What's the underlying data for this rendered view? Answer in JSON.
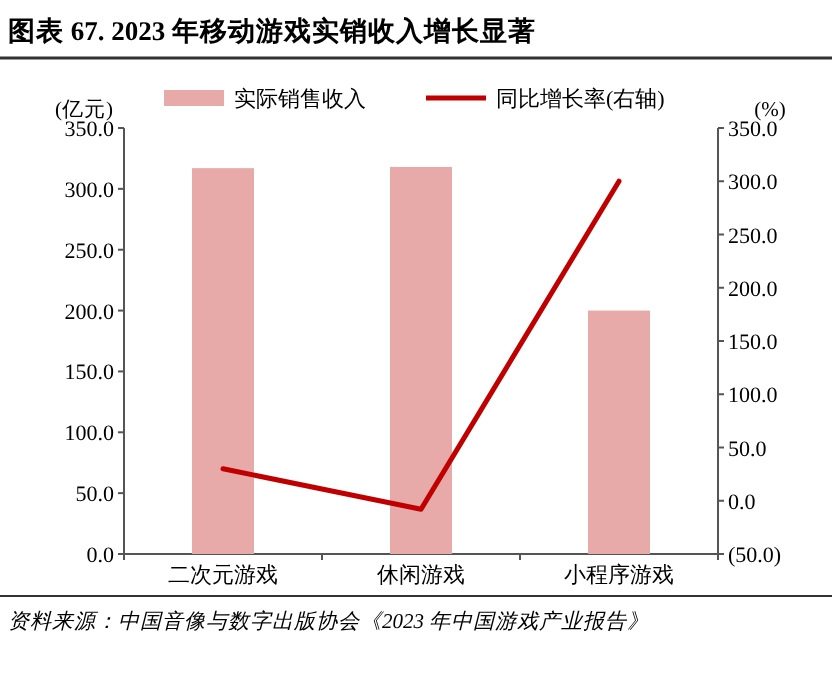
{
  "chart_data": {
    "type": "bar",
    "title": "图表 67. 2023 年移动游戏实销收入增长显著",
    "categories": [
      "二次元游戏",
      "休闲游戏",
      "小程序游戏"
    ],
    "series": [
      {
        "name": "实际销售收入",
        "color": "#e8a9a9",
        "values": [
          317,
          318,
          200
        ]
      },
      {
        "name": "同比增长率(右轴)",
        "type": "line",
        "axis": "y2",
        "color": "#c00000",
        "values": [
          30,
          -8,
          300
        ]
      }
    ],
    "ylabel": "(亿元)",
    "y2label": "(%)",
    "ylim": [
      0,
      350
    ],
    "yticks": [
      {
        "value": 0,
        "label": "0.0"
      },
      {
        "value": 50,
        "label": "50.0"
      },
      {
        "value": 100,
        "label": "100.0"
      },
      {
        "value": 150,
        "label": "150.0"
      },
      {
        "value": 200,
        "label": "200.0"
      },
      {
        "value": 250,
        "label": "250.0"
      },
      {
        "value": 300,
        "label": "300.0"
      },
      {
        "value": 350,
        "label": "350.0"
      }
    ],
    "y2lim": [
      -50,
      350
    ],
    "y2ticks": [
      {
        "value": -50,
        "label": "(50.0)"
      },
      {
        "value": 0,
        "label": "0.0"
      },
      {
        "value": 50,
        "label": "50.0"
      },
      {
        "value": 100,
        "label": "100.0"
      },
      {
        "value": 150,
        "label": "150.0"
      },
      {
        "value": 200,
        "label": "200.0"
      },
      {
        "value": 250,
        "label": "250.0"
      },
      {
        "value": 300,
        "label": "300.0"
      },
      {
        "value": 350,
        "label": "350.0"
      }
    ],
    "legend": "top",
    "annotations": [
      "资料来源：中国音像与数字出版协会《2023 年中国游戏产业报告》"
    ]
  }
}
